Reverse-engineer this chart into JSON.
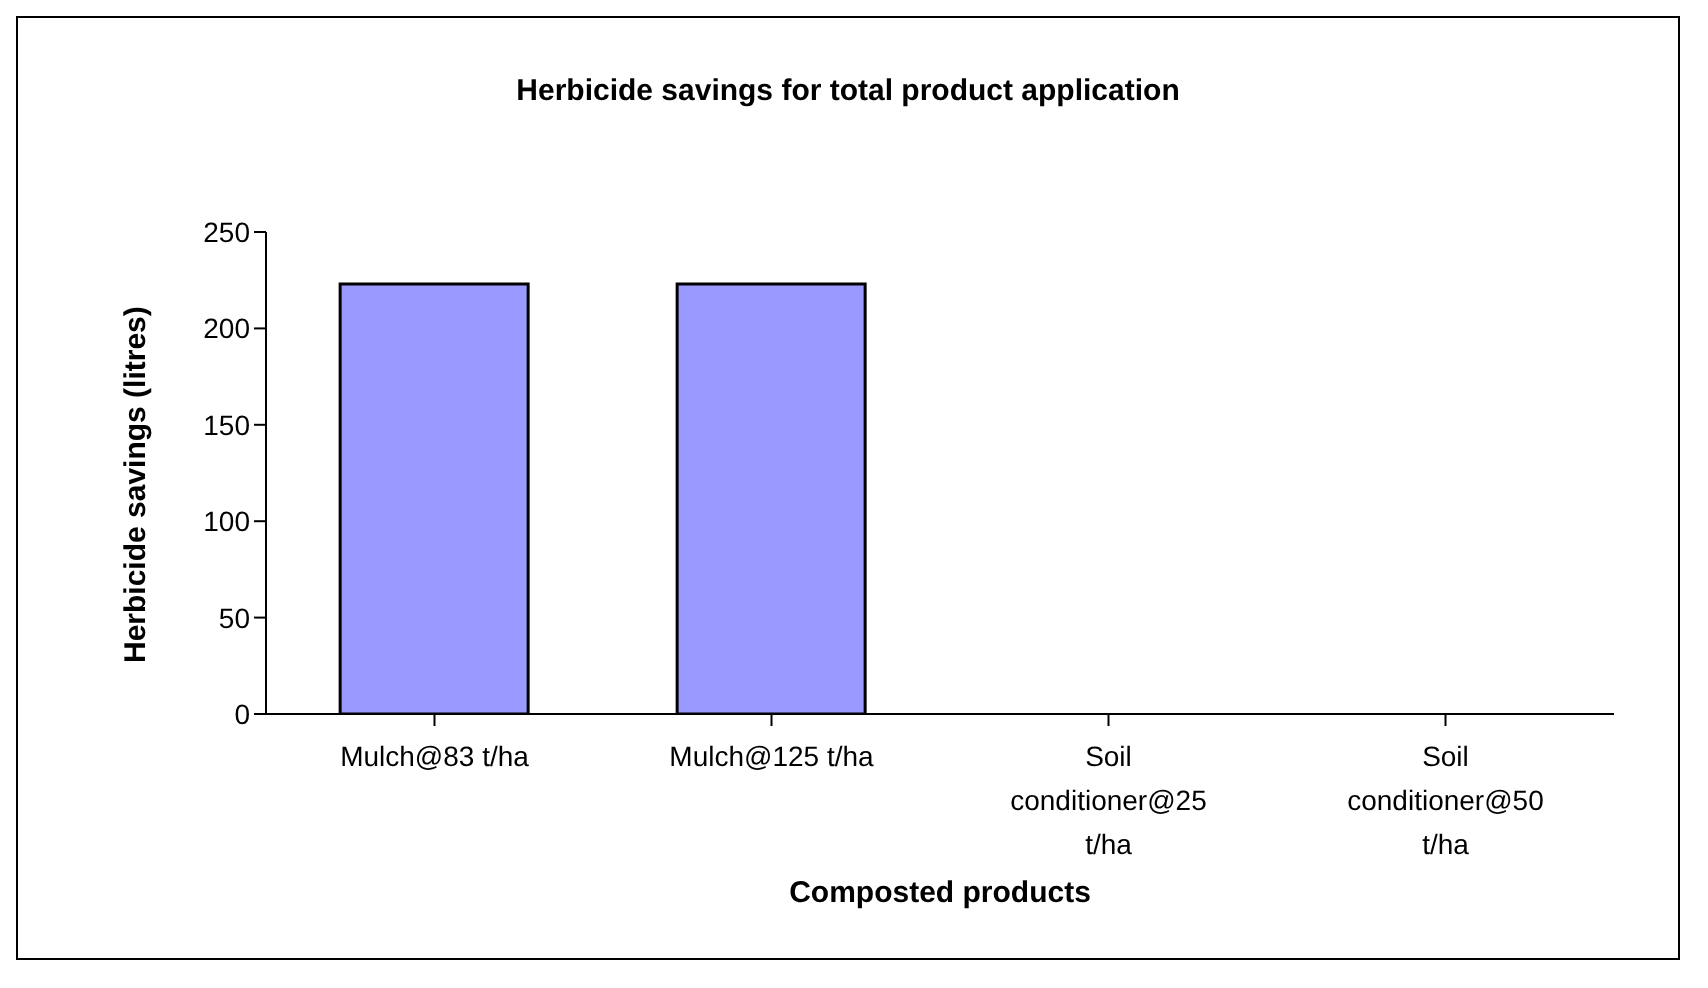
{
  "chart_data": {
    "type": "bar",
    "title": "Herbicide savings for total product application",
    "xlabel": "Composted products",
    "ylabel": "Herbicide savings (litres)",
    "categories": [
      "Mulch@83 t/ha",
      "Mulch@125 t/ha",
      "Soil conditioner@25 t/ha",
      "Soil conditioner@50 t/ha"
    ],
    "values": [
      223,
      223,
      0,
      0
    ],
    "color": "#9999ff",
    "ylim": [
      0,
      250
    ],
    "yticks": [
      0,
      50,
      100,
      150,
      200,
      250
    ],
    "grid": false,
    "legend": false
  }
}
